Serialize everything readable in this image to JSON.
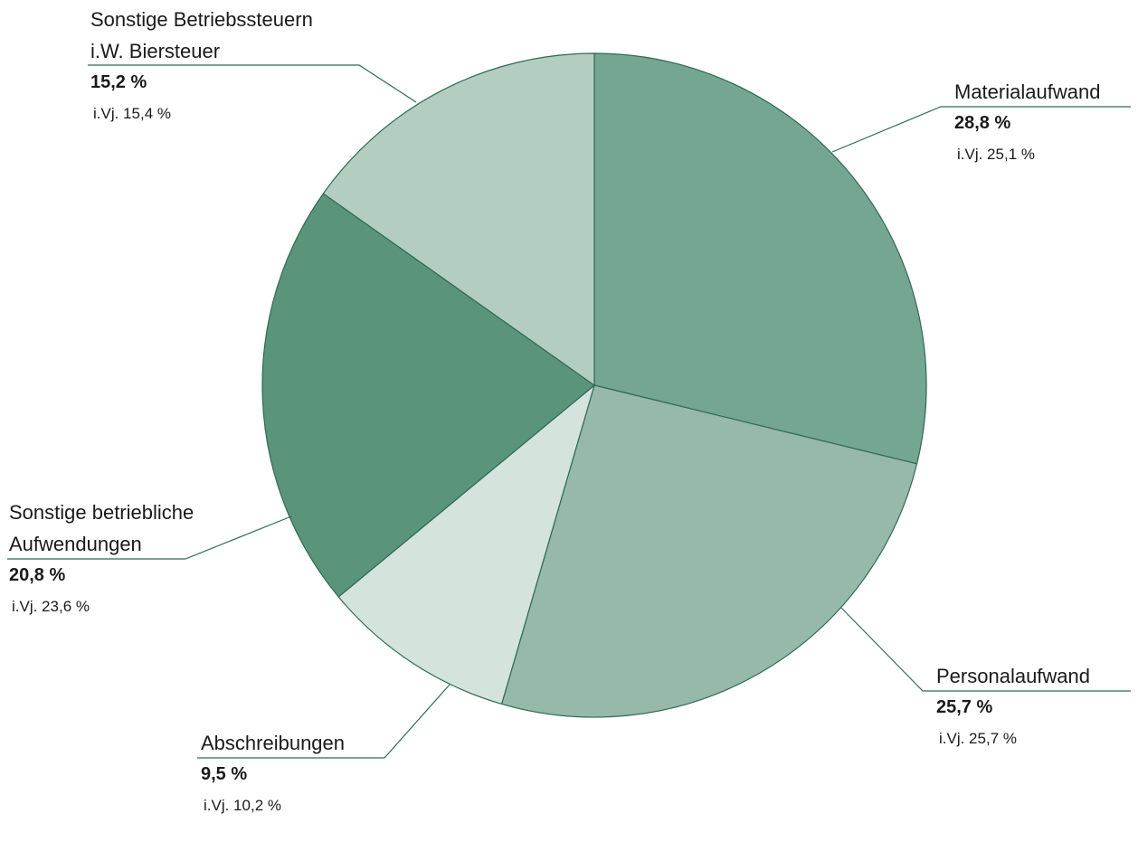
{
  "chart_data": {
    "type": "pie",
    "categories": [
      "Materialaufwand",
      "Personalaufwand",
      "Abschreibungen",
      "Sonstige betriebliche\nAufwendungen",
      "Sonstige Betriebssteuern\ni.W. Biersteuer"
    ],
    "values": [
      28.8,
      25.7,
      9.5,
      20.8,
      15.2
    ],
    "value_labels": [
      "28,8 %",
      "25,7 %",
      "9,5 %",
      "20,8 %",
      "15,2 %"
    ],
    "prior_year_labels": [
      "i.Vj. 25,1 %",
      "i.Vj. 25,7 %",
      "i.Vj. 10,2 %",
      "i.Vj. 23,6 %",
      "i.Vj. 15,4 %"
    ],
    "colors": [
      "#75a692",
      "#96b9a9",
      "#d4e3dc",
      "#5a947a",
      "#b3cec1"
    ]
  }
}
